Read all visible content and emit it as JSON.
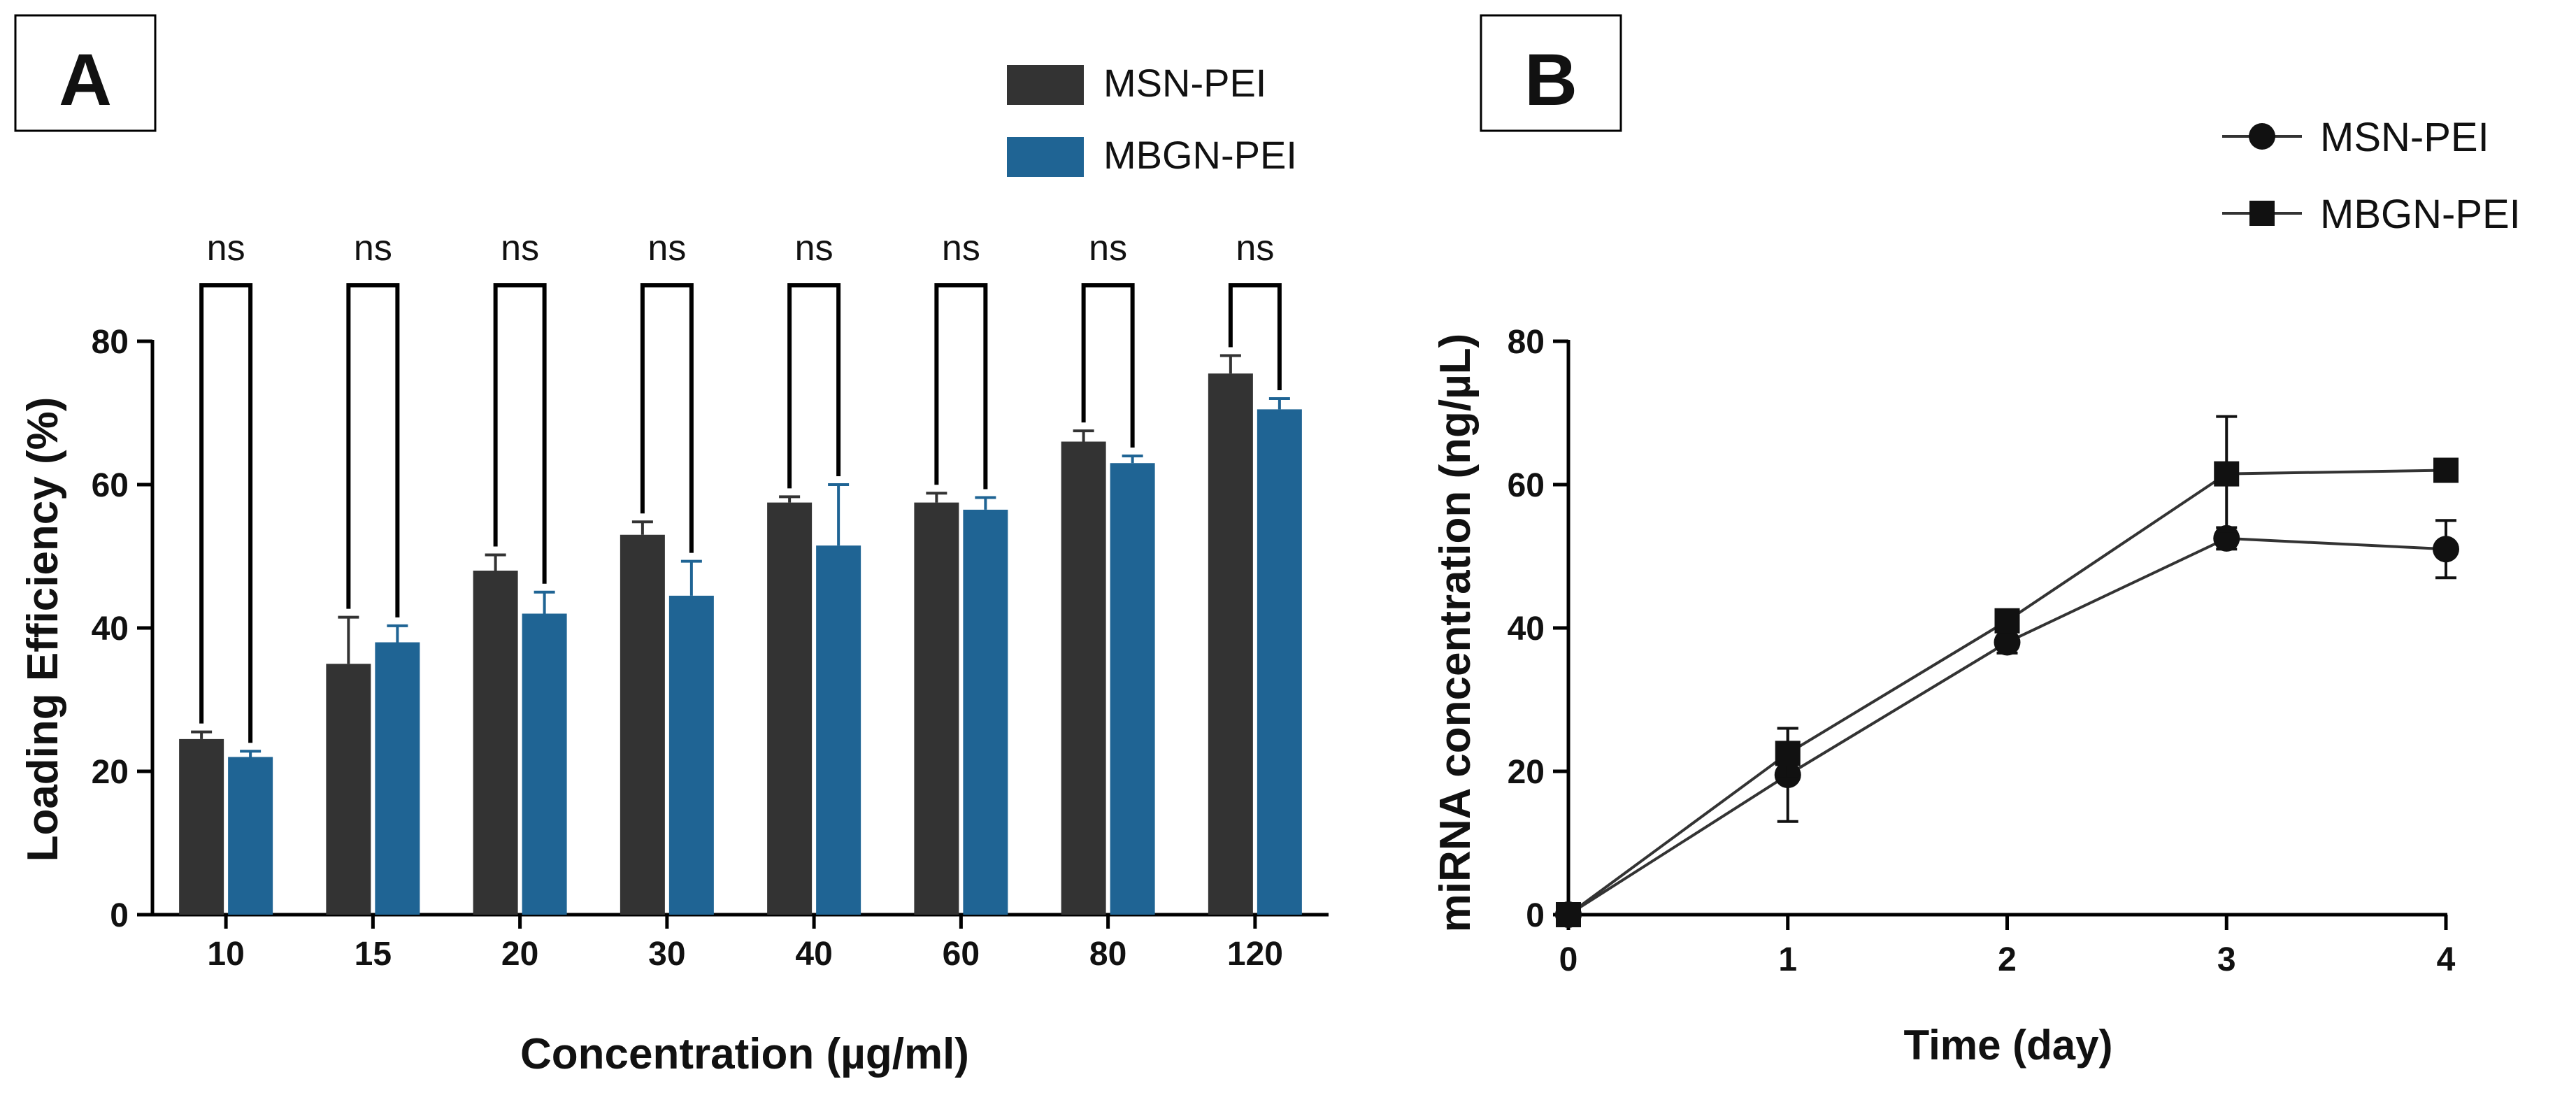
{
  "chart_data": [
    {
      "panel": "A",
      "type": "bar",
      "xlabel": "Concentration (µg/ml)",
      "ylabel": "Loading Efficiency (%)",
      "ylim": [
        0,
        80
      ],
      "yticks": [
        0,
        20,
        40,
        60,
        80
      ],
      "categories": [
        "10",
        "15",
        "20",
        "30",
        "40",
        "60",
        "80",
        "120"
      ],
      "series": [
        {
          "name": "MSN-PEI",
          "color": "#333333",
          "values": [
            24.5,
            35,
            48,
            53,
            57.5,
            57.5,
            66,
            75.5
          ],
          "errors": [
            1,
            6.5,
            2.2,
            1.8,
            0.8,
            1.3,
            1.5,
            2.5
          ]
        },
        {
          "name": "MBGN-PEI",
          "color": "#1f6494",
          "values": [
            22,
            38,
            42,
            44.5,
            51.5,
            56.5,
            63,
            70.5
          ],
          "errors": [
            0.8,
            2.3,
            3,
            4.8,
            8.5,
            1.7,
            1,
            1.5
          ]
        }
      ],
      "significance": [
        "ns",
        "ns",
        "ns",
        "ns",
        "ns",
        "ns",
        "ns",
        "ns"
      ],
      "legend_position": "top"
    },
    {
      "panel": "B",
      "type": "line",
      "xlabel": "Time (day)",
      "ylabel": "miRNA concentration (ng/µL)",
      "xlim": [
        0,
        4
      ],
      "ylim": [
        0,
        80
      ],
      "xticks": [
        0,
        1,
        2,
        3,
        4
      ],
      "yticks": [
        0,
        20,
        40,
        60,
        80
      ],
      "x": [
        0,
        1,
        2,
        3,
        4
      ],
      "series": [
        {
          "name": "MSN-PEI",
          "marker": "circle",
          "values": [
            0,
            19.5,
            38,
            52.5,
            51
          ],
          "errors": [
            0,
            6.5,
            1.5,
            1.5,
            4
          ]
        },
        {
          "name": "MBGN-PEI",
          "marker": "square",
          "values": [
            0,
            22.5,
            41,
            61.5,
            62
          ],
          "errors": [
            0,
            3.5,
            1.2,
            8,
            0.5
          ]
        }
      ],
      "legend_position": "top-right"
    }
  ]
}
